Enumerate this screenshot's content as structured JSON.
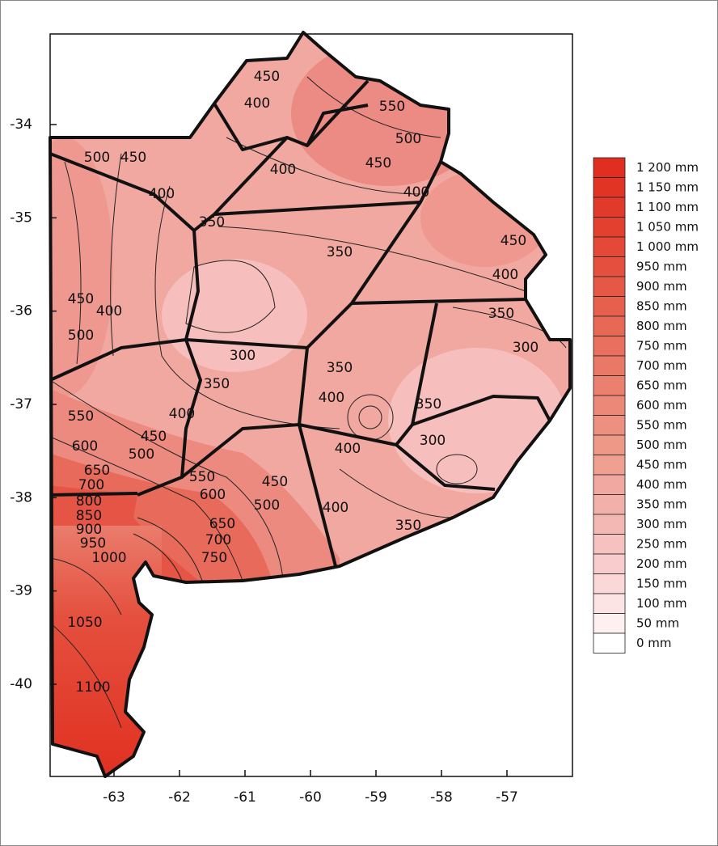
{
  "map": {
    "xticks": [
      -63,
      -62,
      -61,
      -60,
      -59,
      -58,
      -57
    ],
    "yticks": [
      -34,
      -35,
      -36,
      -37,
      -38,
      -39,
      -40
    ],
    "legend": [
      {
        "label": "1 200 mm",
        "color": "#e02f20"
      },
      {
        "label": "1 150 mm",
        "color": "#e13424"
      },
      {
        "label": "1 100 mm",
        "color": "#e23a2a"
      },
      {
        "label": "1 050 mm",
        "color": "#e34030"
      },
      {
        "label": "1 000 mm",
        "color": "#e44836"
      },
      {
        "label": "950 mm",
        "color": "#e5503e"
      },
      {
        "label": "900 mm",
        "color": "#e65846"
      },
      {
        "label": "850 mm",
        "color": "#e7604e"
      },
      {
        "label": "800 mm",
        "color": "#e86856"
      },
      {
        "label": "750 mm",
        "color": "#e9705e"
      },
      {
        "label": "700 mm",
        "color": "#ea7866"
      },
      {
        "label": "650 mm",
        "color": "#eb806e"
      },
      {
        "label": "600 mm",
        "color": "#ec8878"
      },
      {
        "label": "550 mm",
        "color": "#ed9080"
      },
      {
        "label": "500 mm",
        "color": "#ee9888"
      },
      {
        "label": "450 mm",
        "color": "#efa090"
      },
      {
        "label": "400 mm",
        "color": "#f0a8a0"
      },
      {
        "label": "350 mm",
        "color": "#f2b0aa"
      },
      {
        "label": "300 mm",
        "color": "#f4b8b4"
      },
      {
        "label": "250 mm",
        "color": "#f6c2c0"
      },
      {
        "label": "200 mm",
        "color": "#f8cccc"
      },
      {
        "label": "150 mm",
        "color": "#fad8d8"
      },
      {
        "label": "100 mm",
        "color": "#fce4e4"
      },
      {
        "label": "50 mm",
        "color": "#fef0f0"
      },
      {
        "label": "0 mm",
        "color": "#ffffff"
      }
    ],
    "contour_labels": [
      "450",
      "400",
      "550",
      "500",
      "450",
      "400",
      "400",
      "500",
      "450",
      "400",
      "350",
      "350",
      "450",
      "400",
      "450",
      "400",
      "500",
      "350",
      "300",
      "300",
      "350",
      "350",
      "400",
      "400",
      "350",
      "550",
      "450",
      "500",
      "600",
      "400",
      "300",
      "650",
      "550",
      "450",
      "600",
      "500",
      "700",
      "400",
      "350",
      "800",
      "850",
      "900",
      "950",
      "650",
      "700",
      "750",
      "1000",
      "1050",
      "1100"
    ]
  }
}
